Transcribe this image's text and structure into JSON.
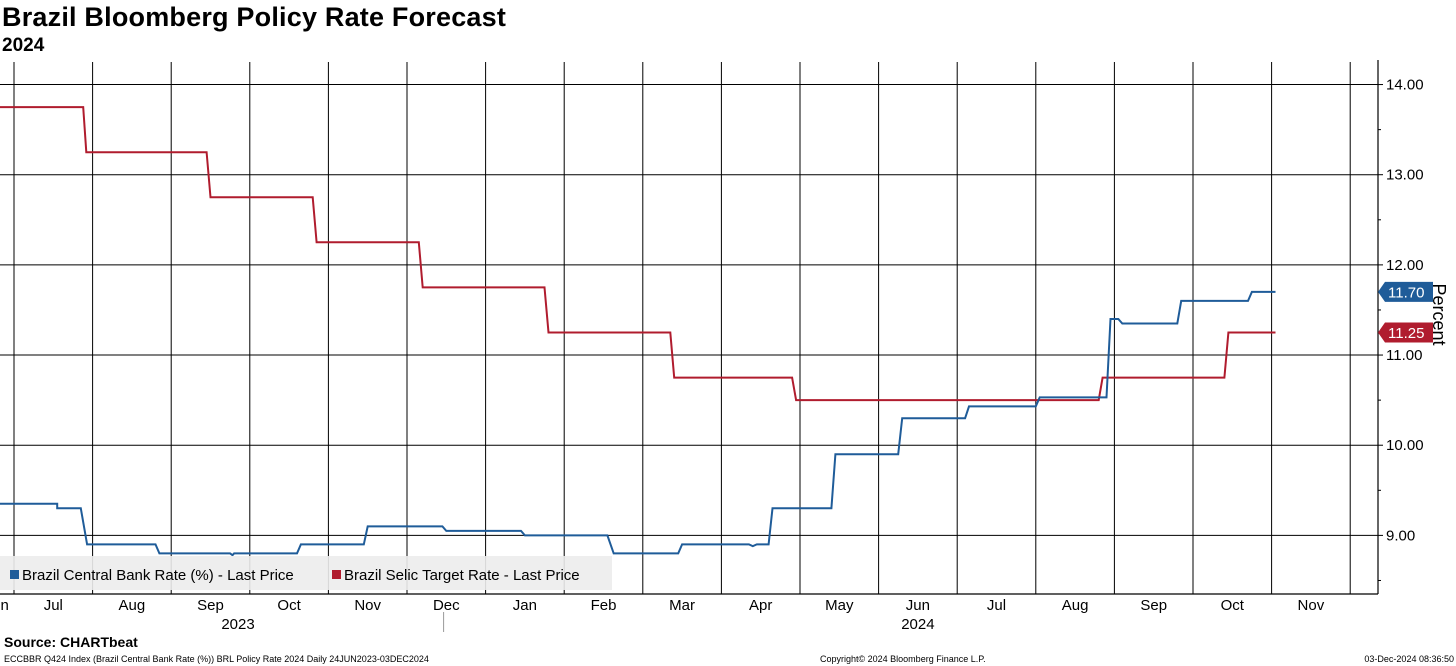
{
  "title": "Brazil Bloomberg Policy Rate Forecast",
  "subtitle": "2024",
  "source": "Source: CHARTbeat",
  "footer": {
    "left": "ECCBBR Q424 Index (Brazil Central Bank Rate (%)) BRL Policy Rate 2024  Daily 24JUN2023-03DEC2024",
    "center": "Copyright© 2024 Bloomberg Finance L.P.",
    "right": "03-Dec-2024 08:36:50"
  },
  "chart_data": {
    "type": "line",
    "title": "Brazil Bloomberg Policy Rate Forecast",
    "subtitle": "2024",
    "ylabel": "Percent",
    "ylim": [
      8.35,
      14.25
    ],
    "y_ticks": [
      9,
      10,
      11,
      12,
      13,
      14
    ],
    "y_tick_labels": [
      "9.00",
      "10.00",
      "11.00",
      "12.00",
      "13.00",
      "14.00"
    ],
    "xlim": [
      -0.25,
      17.3
    ],
    "x_ticks": [
      {
        "label": "Jun",
        "x": -0.22
      },
      {
        "label": "Jul",
        "x": 0.5
      },
      {
        "label": "Aug",
        "x": 1.5
      },
      {
        "label": "Sep",
        "x": 2.5
      },
      {
        "label": "Oct",
        "x": 3.5
      },
      {
        "label": "Nov",
        "x": 4.5
      },
      {
        "label": "Dec",
        "x": 5.5
      },
      {
        "label": "Jan",
        "x": 6.5
      },
      {
        "label": "Feb",
        "x": 7.5
      },
      {
        "label": "Mar",
        "x": 8.5
      },
      {
        "label": "Apr",
        "x": 9.5
      },
      {
        "label": "May",
        "x": 10.5
      },
      {
        "label": "Jun",
        "x": 11.5
      },
      {
        "label": "Jul",
        "x": 12.5
      },
      {
        "label": "Aug",
        "x": 13.5
      },
      {
        "label": "Sep",
        "x": 14.5
      },
      {
        "label": "Oct",
        "x": 15.5
      },
      {
        "label": "Nov",
        "x": 16.5
      }
    ],
    "month_gridlines": [
      0,
      1,
      2,
      3,
      4,
      5,
      6,
      7,
      8,
      9,
      10,
      11,
      12,
      13,
      14,
      15,
      16,
      17
    ],
    "year_labels": [
      {
        "label": "2023",
        "x": 2.85
      },
      {
        "label": "2024",
        "x": 11.5
      }
    ],
    "year_separator_x": 6.0,
    "x_unit": "months since 1 Jul 2023",
    "series": [
      {
        "name": "Brazil Central Bank Rate (%) - Last Price",
        "color": "#1f5c99",
        "last_label": "11.70",
        "points": [
          [
            -0.25,
            9.35
          ],
          [
            0.55,
            9.35
          ],
          [
            0.55,
            9.3
          ],
          [
            0.85,
            9.3
          ],
          [
            0.93,
            8.9
          ],
          [
            1.8,
            8.9
          ],
          [
            1.85,
            8.8
          ],
          [
            2.75,
            8.8
          ],
          [
            2.78,
            8.78
          ],
          [
            2.8,
            8.8
          ],
          [
            3.6,
            8.8
          ],
          [
            3.65,
            8.9
          ],
          [
            4.45,
            8.9
          ],
          [
            4.5,
            9.1
          ],
          [
            5.45,
            9.1
          ],
          [
            5.5,
            9.05
          ],
          [
            6.45,
            9.05
          ],
          [
            6.5,
            9.0
          ],
          [
            7.55,
            9.0
          ],
          [
            7.63,
            8.8
          ],
          [
            8.45,
            8.8
          ],
          [
            8.5,
            8.9
          ],
          [
            9.35,
            8.9
          ],
          [
            9.4,
            8.88
          ],
          [
            9.45,
            8.9
          ],
          [
            9.6,
            8.9
          ],
          [
            9.65,
            9.3
          ],
          [
            10.4,
            9.3
          ],
          [
            10.45,
            9.9
          ],
          [
            11.25,
            9.9
          ],
          [
            11.3,
            10.3
          ],
          [
            12.1,
            10.3
          ],
          [
            12.15,
            10.43
          ],
          [
            13.0,
            10.43
          ],
          [
            13.05,
            10.53
          ],
          [
            13.9,
            10.53
          ],
          [
            13.95,
            11.4
          ],
          [
            14.05,
            11.4
          ],
          [
            14.1,
            11.35
          ],
          [
            14.8,
            11.35
          ],
          [
            14.85,
            11.6
          ],
          [
            15.7,
            11.6
          ],
          [
            15.75,
            11.7
          ],
          [
            16.05,
            11.7
          ]
        ]
      },
      {
        "name": "Brazil Selic Target Rate - Last Price",
        "color": "#b01c2e",
        "last_label": "11.25",
        "points": [
          [
            -0.25,
            13.75
          ],
          [
            0.88,
            13.75
          ],
          [
            0.92,
            13.25
          ],
          [
            2.45,
            13.25
          ],
          [
            2.5,
            12.75
          ],
          [
            3.8,
            12.75
          ],
          [
            3.85,
            12.25
          ],
          [
            5.15,
            12.25
          ],
          [
            5.2,
            11.75
          ],
          [
            6.75,
            11.75
          ],
          [
            6.8,
            11.25
          ],
          [
            8.35,
            11.25
          ],
          [
            8.4,
            10.75
          ],
          [
            9.9,
            10.75
          ],
          [
            9.95,
            10.5
          ],
          [
            13.8,
            10.5
          ],
          [
            13.85,
            10.75
          ],
          [
            15.4,
            10.75
          ],
          [
            15.45,
            11.25
          ],
          [
            16.05,
            11.25
          ]
        ]
      }
    ],
    "legend": [
      {
        "label": "Brazil Central Bank Rate (%) - Last Price",
        "color": "#1f5c99"
      },
      {
        "label": "Brazil Selic Target Rate - Last Price",
        "color": "#b01c2e"
      }
    ]
  }
}
